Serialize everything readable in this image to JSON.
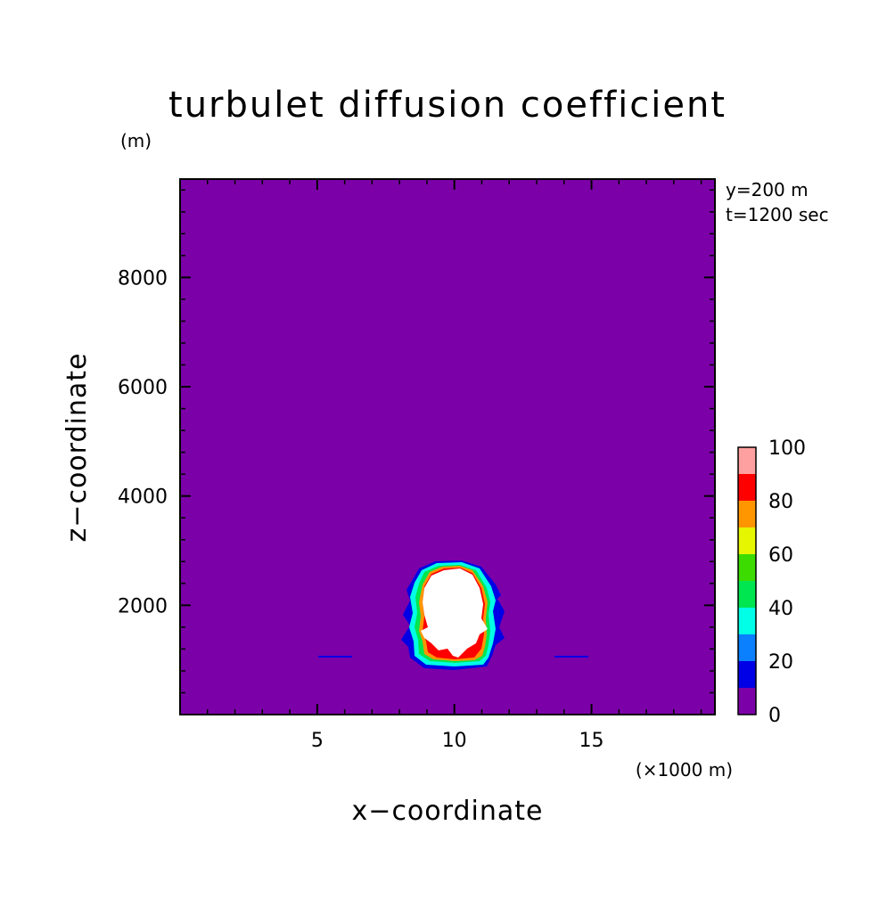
{
  "chart_data": {
    "type": "heatmap",
    "title": "turbulet diffusion coefficient",
    "xlabel": "x−coordinate",
    "ylabel": "z−coordinate",
    "x_unit": "(×1000 m)",
    "y_unit": "(m)",
    "xlim": [
      0,
      19.5
    ],
    "ylim": [
      0,
      9800
    ],
    "x_ticks": [
      5,
      10,
      15
    ],
    "x_tick_labels": [
      "5",
      "10",
      "15"
    ],
    "y_ticks": [
      2000,
      4000,
      6000,
      8000
    ],
    "y_tick_labels": [
      "2000",
      "4000",
      "6000",
      "8000"
    ],
    "info_lines": [
      "y=200 m",
      "t=1200 sec"
    ],
    "background_level_color": "#7c00a8",
    "saturated_region_color": "#ffffff",
    "colorbar": {
      "levels": [
        0,
        10,
        20,
        30,
        40,
        50,
        60,
        70,
        80,
        90,
        100
      ],
      "tick_values": [
        0,
        20,
        40,
        60,
        80,
        100
      ],
      "tick_labels": [
        "0",
        "20",
        "40",
        "60",
        "80",
        "100"
      ],
      "colors": [
        "#7c00a8",
        "#0000e6",
        "#0a80ff",
        "#00ffe6",
        "#00e650",
        "#3cdc00",
        "#e6f500",
        "#ff9600",
        "#ff0000",
        "#ffa0a0"
      ]
    }
  }
}
